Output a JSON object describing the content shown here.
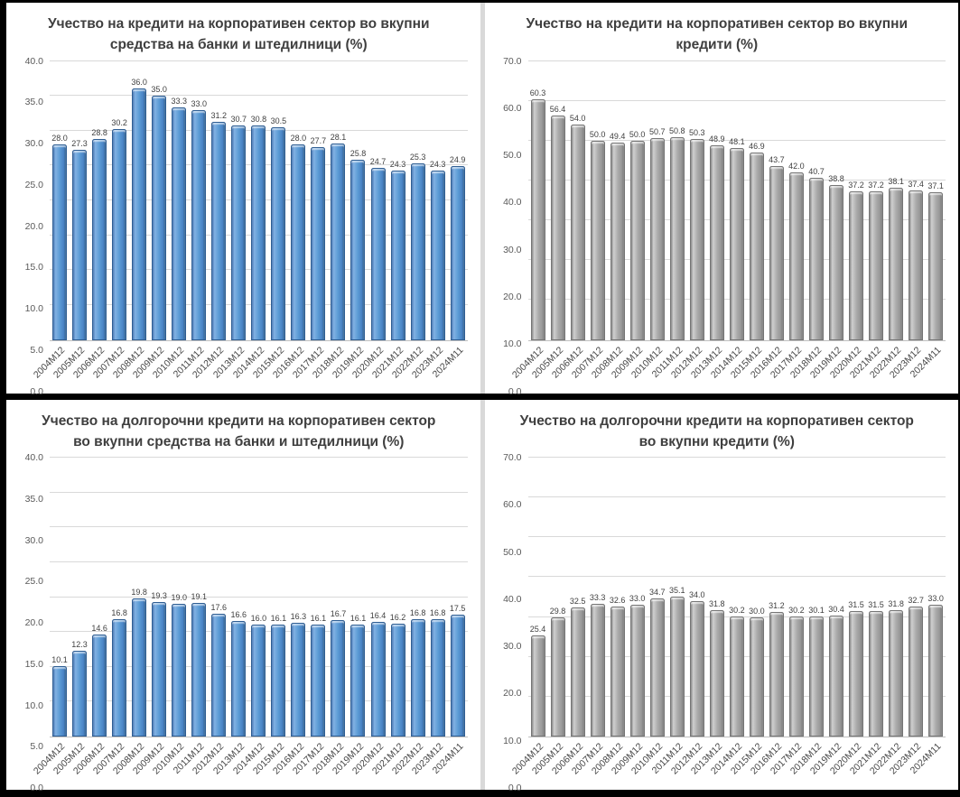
{
  "chart_data": [
    {
      "type": "bar",
      "position": "top-left",
      "title": "Учество на кредити на корпоративен сектор во вкупни средства на банки и штедилници  (%)",
      "bar_style": "blue",
      "bar_color": "#5b9bd5",
      "bar_border_color": "#2f5e93",
      "ylim": [
        0,
        40
      ],
      "ytick_step": 5,
      "ytick_labels": [
        "0.0",
        "5.0",
        "10.0",
        "15.0",
        "20.0",
        "25.0",
        "30.0",
        "35.0",
        "40.0"
      ],
      "grid": true,
      "legend": "none",
      "categories": [
        "2004M12",
        "2005M12",
        "2006M12",
        "2007M12",
        "2008M12",
        "2009M12",
        "2010M12",
        "2011M12",
        "2012M12",
        "2013M12",
        "2014M12",
        "2015M12",
        "2016M12",
        "2017M12",
        "2018M12",
        "2019M12",
        "2020M12",
        "2021M12",
        "2022M12",
        "2023M12",
        "2024M11"
      ],
      "values": [
        28.0,
        27.3,
        28.8,
        30.2,
        36.0,
        35.0,
        33.3,
        33.0,
        31.2,
        30.7,
        30.8,
        30.5,
        28.0,
        27.7,
        28.1,
        25.8,
        24.7,
        24.3,
        25.3,
        24.3,
        24.9
      ]
    },
    {
      "type": "bar",
      "position": "top-right",
      "title": "Учество на кредити на корпоративен сектор во вкупни кредити (%)",
      "bar_style": "gray",
      "bar_color": "#ababab",
      "bar_border_color": "#757575",
      "ylim": [
        0,
        70
      ],
      "ytick_step": 10,
      "ytick_labels": [
        "0.0",
        "10.0",
        "20.0",
        "30.0",
        "40.0",
        "50.0",
        "60.0",
        "70.0"
      ],
      "grid": true,
      "legend": "none",
      "categories": [
        "2004M12",
        "2005M12",
        "2006M12",
        "2007M12",
        "2008M12",
        "2009M12",
        "2010M12",
        "2011M12",
        "2012M12",
        "2013M12",
        "2014M12",
        "2015M12",
        "2016M12",
        "2017M12",
        "2018M12",
        "2019M12",
        "2020M12",
        "2021M12",
        "2022M12",
        "2023M12",
        "2024M11"
      ],
      "values": [
        60.3,
        56.4,
        54.0,
        50.0,
        49.4,
        50.0,
        50.7,
        50.8,
        50.3,
        48.9,
        48.1,
        46.9,
        43.7,
        42.0,
        40.7,
        38.8,
        37.2,
        37.2,
        38.1,
        37.4,
        37.1
      ]
    },
    {
      "type": "bar",
      "position": "bottom-left",
      "title": "Учество на долгорочни кредити на корпоративен сектор во вкупни средства на банки и штедилници  (%)",
      "bar_style": "blue",
      "bar_color": "#5b9bd5",
      "bar_border_color": "#2f5e93",
      "ylim": [
        0,
        40
      ],
      "ytick_step": 5,
      "ytick_labels": [
        "0.0",
        "5.0",
        "10.0",
        "15.0",
        "20.0",
        "25.0",
        "30.0",
        "35.0",
        "40.0"
      ],
      "grid": true,
      "legend": "none",
      "categories": [
        "2004M12",
        "2005M12",
        "2006M12",
        "2007M12",
        "2008M12",
        "2009M12",
        "2010M12",
        "2011M12",
        "2012M12",
        "2013M12",
        "2014M12",
        "2015M12",
        "2016M12",
        "2017M12",
        "2018M12",
        "2019M12",
        "2020M12",
        "2021M12",
        "2022M12",
        "2023M12",
        "2024M11"
      ],
      "values": [
        10.1,
        12.3,
        14.6,
        16.8,
        19.8,
        19.3,
        19.0,
        19.1,
        17.6,
        16.6,
        16.0,
        16.1,
        16.3,
        16.1,
        16.7,
        16.1,
        16.4,
        16.2,
        16.8,
        16.8,
        17.5
      ]
    },
    {
      "type": "bar",
      "position": "bottom-right",
      "title": "Учество на долгорочни кредити на корпоративен сектор во вкупни кредити (%)",
      "bar_style": "gray",
      "bar_color": "#ababab",
      "bar_border_color": "#757575",
      "ylim": [
        0,
        70
      ],
      "ytick_step": 10,
      "ytick_labels": [
        "0.0",
        "10.0",
        "20.0",
        "30.0",
        "40.0",
        "50.0",
        "60.0",
        "70.0"
      ],
      "grid": true,
      "legend": "none",
      "categories": [
        "2004M12",
        "2005M12",
        "2006M12",
        "2007M12",
        "2008M12",
        "2009M12",
        "2010M12",
        "2011M12",
        "2012M12",
        "2013M12",
        "2014M12",
        "2015M12",
        "2016M12",
        "2017M12",
        "2018M12",
        "2019M12",
        "2020M12",
        "2021M12",
        "2022M12",
        "2023M12",
        "2024M11"
      ],
      "values": [
        25.4,
        29.8,
        32.5,
        33.3,
        32.6,
        33.0,
        34.7,
        35.1,
        34.0,
        31.8,
        30.2,
        30.0,
        31.2,
        30.2,
        30.1,
        30.4,
        31.5,
        31.5,
        31.8,
        32.7,
        33.0
      ]
    }
  ],
  "colors": {
    "background_frame": "#000000",
    "panel_background": "#ffffff",
    "gridline": "#d9d9d9",
    "axis_line": "#bfbfbf",
    "title_text": "#3f3f3f",
    "tick_text": "#595959",
    "value_label_text": "#404040"
  }
}
